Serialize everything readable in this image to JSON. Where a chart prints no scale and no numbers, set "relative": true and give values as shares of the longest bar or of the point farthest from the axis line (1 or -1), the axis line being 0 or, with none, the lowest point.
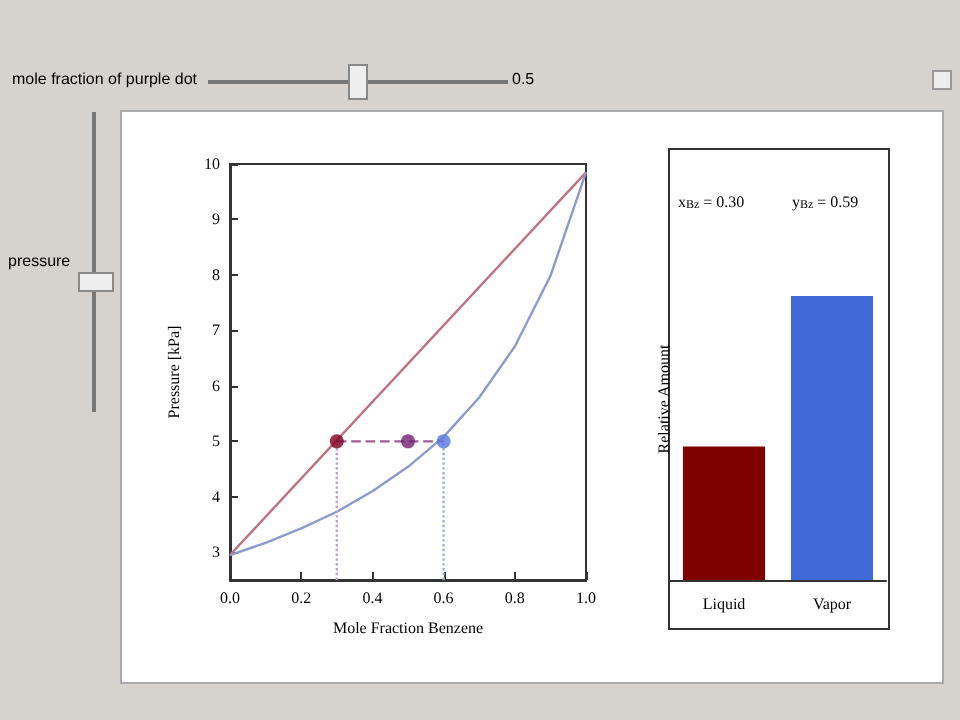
{
  "chart_data": [
    {
      "type": "line",
      "xlabel": "Mole Fraction Benzene",
      "ylabel": "Pressure [kPa]",
      "annotations": [
        "mole fraction of purple dot",
        "0.5",
        "pressure"
      ],
      "xlim": [
        0,
        1
      ],
      "ylim": [
        2.5,
        10
      ],
      "xticks": [
        {
          "value": 0,
          "label": "0.0"
        },
        {
          "value": 0.2,
          "label": "0.2"
        },
        {
          "value": 0.4,
          "label": "0.4"
        },
        {
          "value": 0.6,
          "label": "0.6"
        },
        {
          "value": 0.8,
          "label": "0.8"
        },
        {
          "value": 1,
          "label": "1.0"
        }
      ],
      "yticks": [
        3,
        4,
        5,
        6,
        7,
        8,
        9,
        10
      ],
      "grid": false,
      "series": [
        {
          "color": "#c07080",
          "x": [
            0,
            1
          ],
          "values": [
            2.95,
            9.85
          ]
        },
        {
          "color": "#8c9ad0",
          "x": [
            0,
            0.1,
            0.2,
            0.3,
            0.4,
            0.5,
            0.6,
            0.7,
            0.8,
            0.9,
            1
          ],
          "values": [
            2.95,
            3.17,
            3.43,
            3.73,
            4.1,
            4.54,
            5.08,
            5.79,
            6.71,
            7.98,
            9.85
          ]
        },
        {
          "color": "#a06090",
          "line_style": "dashed",
          "x": [
            0.3,
            0.6
          ],
          "values": [
            5,
            5
          ]
        },
        {
          "color": "#c0a0d0",
          "line_style": "dotted",
          "x": [
            0.3,
            0.3
          ],
          "values": [
            2.5,
            5
          ]
        },
        {
          "color": "#a0b0e0",
          "line_style": "dotted",
          "x": [
            0.6,
            0.6
          ],
          "values": [
            2.5,
            5
          ]
        },
        {
          "type": "scatter",
          "marker": "circle",
          "color": "#800020",
          "x": [
            0.3
          ],
          "values": [
            5
          ]
        },
        {
          "type": "scatter",
          "marker": "circle",
          "color": "#702070",
          "x": [
            0.5
          ],
          "values": [
            5
          ]
        },
        {
          "type": "scatter",
          "marker": "circle",
          "color": "#5577dd",
          "x": [
            0.6
          ],
          "values": [
            5
          ]
        }
      ]
    },
    {
      "type": "bar",
      "ylabel": "Relative Amount",
      "relative": true,
      "categories": [
        "Liquid",
        "Vapor"
      ],
      "values": [
        0.47,
        1
      ],
      "colors": [
        "#800000",
        "#4169d8"
      ],
      "annotations": [
        "x$_{Bz}$ = 0.30",
        "y$_{Bz}$ = 0.59"
      ]
    }
  ]
}
